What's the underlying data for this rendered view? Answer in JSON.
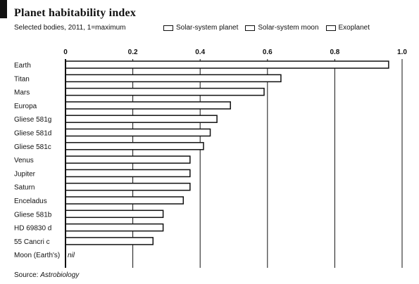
{
  "header": {
    "title": "Planet habitability index",
    "subtitle": "Selected bodies, 2011, 1=maximum"
  },
  "legend": {
    "items": [
      {
        "label": "Solar-system planet"
      },
      {
        "label": "Solar-system moon"
      },
      {
        "label": "Exoplanet"
      }
    ]
  },
  "source": {
    "prefix": "Source: ",
    "name": "Astrobiology"
  },
  "colors": {
    "ink": "#111111",
    "grid": "#111111",
    "bar_fill": "#ffffff"
  },
  "chart_data": {
    "type": "bar",
    "orientation": "horizontal",
    "title": "Planet habitability index",
    "subtitle": "Selected bodies, 2011, 1=maximum",
    "xlim": [
      0,
      1.0
    ],
    "xticks": [
      "0",
      "0.2",
      "0.4",
      "0.6",
      "0.8",
      "1.0"
    ],
    "xtick_values": [
      0,
      0.2,
      0.4,
      0.6,
      0.8,
      1.0
    ],
    "grid": true,
    "legend_position": "top-right",
    "categories": [
      "Earth",
      "Titan",
      "Mars",
      "Europa",
      "Gliese 581g",
      "Gliese 581d",
      "Gliese 581c",
      "Venus",
      "Jupiter",
      "Saturn",
      "Enceladus",
      "Gliese 581b",
      "HD 69830 d",
      "55 Cancri c",
      "Moon (Earth's)"
    ],
    "values": [
      0.96,
      0.64,
      0.59,
      0.49,
      0.45,
      0.43,
      0.41,
      0.37,
      0.37,
      0.37,
      0.35,
      0.29,
      0.29,
      0.26,
      0
    ],
    "value_labels": [
      "",
      "",
      "",
      "",
      "",
      "",
      "",
      "",
      "",
      "",
      "",
      "",
      "",
      "",
      "nil"
    ]
  }
}
